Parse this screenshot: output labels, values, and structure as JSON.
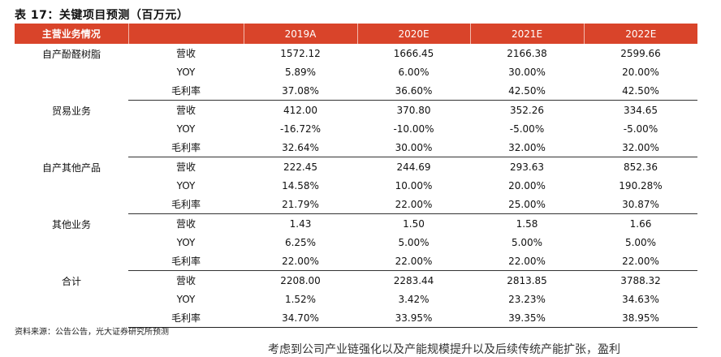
{
  "title": "表 17：关键项目预测（百万元）",
  "header": {
    "col0": "主营业务情况",
    "col1": "",
    "years": [
      "2019A",
      "2020E",
      "2021E",
      "2022E"
    ]
  },
  "groups": [
    {
      "name": "自产酚醛树脂",
      "rows": [
        {
          "metric": "营收",
          "values": [
            "1572.12",
            "1666.45",
            "2166.38",
            "2599.66"
          ]
        },
        {
          "metric": "YOY",
          "values": [
            "5.89%",
            "6.00%",
            "30.00%",
            "20.00%"
          ]
        },
        {
          "metric": "毛利率",
          "values": [
            "37.08%",
            "36.60%",
            "42.50%",
            "42.50%"
          ]
        }
      ]
    },
    {
      "name": "贸易业务",
      "rows": [
        {
          "metric": "营收",
          "values": [
            "412.00",
            "370.80",
            "352.26",
            "334.65"
          ]
        },
        {
          "metric": "YOY",
          "values": [
            "-16.72%",
            "-10.00%",
            "-5.00%",
            "-5.00%"
          ]
        },
        {
          "metric": "毛利率",
          "values": [
            "32.64%",
            "30.00%",
            "32.00%",
            "32.00%"
          ]
        }
      ]
    },
    {
      "name": "自产其他产品",
      "rows": [
        {
          "metric": "营收",
          "values": [
            "222.45",
            "244.69",
            "293.63",
            "852.36"
          ]
        },
        {
          "metric": "YOY",
          "values": [
            "14.58%",
            "10.00%",
            "20.00%",
            "190.28%"
          ]
        },
        {
          "metric": "毛利率",
          "values": [
            "21.79%",
            "22.00%",
            "25.00%",
            "30.87%"
          ]
        }
      ]
    },
    {
      "name": "其他业务",
      "rows": [
        {
          "metric": "营收",
          "values": [
            "1.43",
            "1.50",
            "1.58",
            "1.66"
          ]
        },
        {
          "metric": "YOY",
          "values": [
            "6.25%",
            "5.00%",
            "5.00%",
            "5.00%"
          ]
        },
        {
          "metric": "毛利率",
          "values": [
            "22.00%",
            "22.00%",
            "22.00%",
            "22.00%"
          ]
        }
      ]
    },
    {
      "name": "合计",
      "rows": [
        {
          "metric": "营收",
          "values": [
            "2208.00",
            "2283.44",
            "2813.85",
            "3788.32"
          ]
        },
        {
          "metric": "YOY",
          "values": [
            "1.52%",
            "3.42%",
            "23.23%",
            "34.63%"
          ]
        },
        {
          "metric": "毛利率",
          "values": [
            "34.70%",
            "33.95%",
            "39.35%",
            "38.95%"
          ]
        }
      ]
    }
  ],
  "source": "资料来源：公告公告，光大证券研究所预测",
  "body_text": "考虑到公司产业链强化以及产能规模提升以及后续传统产能扩张，盈利"
}
